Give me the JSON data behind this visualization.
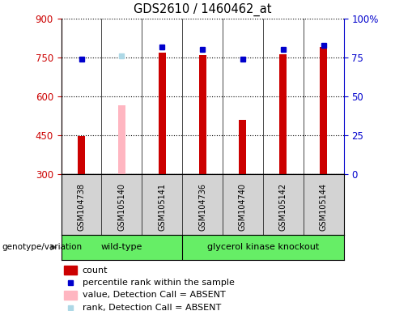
{
  "title": "GDS2610 / 1460462_at",
  "samples": [
    "GSM104738",
    "GSM105140",
    "GSM105141",
    "GSM104736",
    "GSM104740",
    "GSM105142",
    "GSM105144"
  ],
  "count_values": [
    447,
    null,
    770,
    760,
    510,
    763,
    790
  ],
  "count_absent": [
    null,
    565,
    null,
    null,
    null,
    null,
    null
  ],
  "percentile_values": [
    74,
    null,
    82,
    80,
    74,
    80,
    83
  ],
  "percentile_absent": [
    null,
    76,
    null,
    null,
    null,
    null,
    null
  ],
  "ylim_left": [
    300,
    900
  ],
  "ylim_right": [
    0,
    100
  ],
  "yticks_left": [
    300,
    450,
    600,
    750,
    900
  ],
  "yticks_right": [
    0,
    25,
    50,
    75,
    100
  ],
  "bar_color_present": "#cc0000",
  "bar_color_absent": "#ffb6c1",
  "dot_color_present": "#0000cc",
  "dot_color_absent": "#add8e6",
  "bg_color": "#d3d3d3",
  "left_label_color": "#cc0000",
  "right_label_color": "#0000cc",
  "genotype_label": "genotype/variation",
  "wt_color": "#66ee66",
  "gk_color": "#66ee66",
  "legend_items": [
    {
      "label": "count",
      "color": "#cc0000",
      "type": "bar"
    },
    {
      "label": "percentile rank within the sample",
      "color": "#0000cc",
      "type": "dot"
    },
    {
      "label": "value, Detection Call = ABSENT",
      "color": "#ffb6c1",
      "type": "bar"
    },
    {
      "label": "rank, Detection Call = ABSENT",
      "color": "#add8e6",
      "type": "dot"
    }
  ],
  "bar_width": 0.18
}
